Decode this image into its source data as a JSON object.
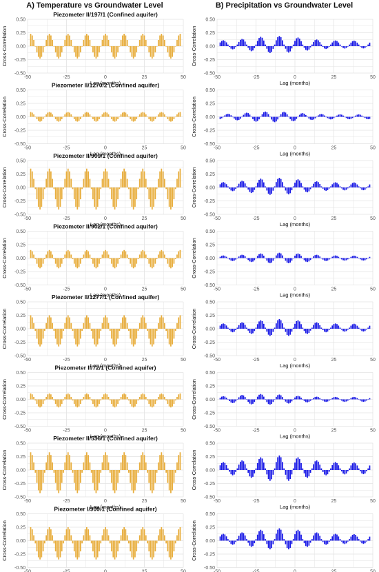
{
  "header": {
    "left_title": "A) Temperature vs Groundwater Level",
    "right_title": "B) Precipitation vs Groundwater Level"
  },
  "colors": {
    "temperature": "#E8AE3E",
    "precipitation": "#1A1AE6",
    "grid": "#E3E3E3",
    "zero_line": "#C8C8C8"
  },
  "panel_text": {
    "ylabel": "Cross-Correlation",
    "xlabel": "Lag (months)",
    "yticks": [
      "-0.50",
      "-0.25",
      "0.00",
      "0.25",
      "0.50"
    ],
    "xticks": [
      "-50",
      "-25",
      "0",
      "25",
      "50"
    ]
  },
  "chart_data": [
    {
      "type": "bar",
      "panel": "A1",
      "title": "Piezometer II/197/1 (Confined aquifer)",
      "xlabel": "Lag (months)",
      "ylabel": "Cross-Correlation",
      "xlim": [
        -50,
        50
      ],
      "ylim": [
        -0.5,
        0.5
      ],
      "lag_range": [
        -48,
        48
      ],
      "model": {
        "amp": 0.23,
        "offset": 0.0,
        "phase": 0
      }
    },
    {
      "type": "bar",
      "panel": "B1",
      "title": "",
      "xlabel": "Lag (months)",
      "ylabel": "Cross-Correlation",
      "xlim": [
        -50,
        50
      ],
      "ylim": [
        -0.5,
        0.5
      ],
      "lag_range": [
        -48,
        48
      ],
      "model": {
        "amp": 0.16,
        "offset": 0.03,
        "phase": 2,
        "envelope_center": -12
      }
    },
    {
      "type": "bar",
      "panel": "A2",
      "title": "Piezometer II/1270/2 (Confined aquifer)",
      "xlabel": "Lag (months)",
      "ylabel": "Cross-Correlation",
      "xlim": [
        -50,
        50
      ],
      "ylim": [
        -0.5,
        0.5
      ],
      "lag_range": [
        -48,
        48
      ],
      "model": {
        "amp": 0.09,
        "offset": 0.0,
        "phase": 0
      }
    },
    {
      "type": "bar",
      "panel": "B2",
      "title": "",
      "xlabel": "Lag (months)",
      "ylabel": "Cross-Correlation",
      "xlim": [
        -50,
        50
      ],
      "ylim": [
        -0.5,
        0.5
      ],
      "lag_range": [
        -48,
        48
      ],
      "model": {
        "amp": 0.1,
        "offset": 0.0,
        "phase": 5,
        "envelope_center": -15
      }
    },
    {
      "type": "bar",
      "panel": "A3",
      "title": "Piezometer II/909/1 (Confined aquifer)",
      "xlabel": "Lag (months)",
      "ylabel": "Cross-Correlation",
      "xlim": [
        -50,
        50
      ],
      "ylim": [
        -0.5,
        0.5
      ],
      "lag_range": [
        -48,
        48
      ],
      "model": {
        "amp": 0.38,
        "offset": -0.03,
        "phase": 0
      }
    },
    {
      "type": "bar",
      "panel": "B3",
      "title": "",
      "xlabel": "Lag (months)",
      "ylabel": "Cross-Correlation",
      "xlim": [
        -50,
        50
      ],
      "ylim": [
        -0.5,
        0.5
      ],
      "lag_range": [
        -48,
        48
      ],
      "model": {
        "amp": 0.16,
        "offset": 0.02,
        "phase": 2,
        "envelope_center": -12
      }
    },
    {
      "type": "bar",
      "panel": "A4",
      "title": "Piezometer II/902/1 (Confined aquifer)",
      "xlabel": "Lag (months)",
      "ylabel": "Cross-Correlation",
      "xlim": [
        -50,
        50
      ],
      "ylim": [
        -0.5,
        0.5
      ],
      "lag_range": [
        -48,
        48
      ],
      "model": {
        "amp": 0.17,
        "offset": -0.02,
        "phase": 0
      }
    },
    {
      "type": "bar",
      "panel": "B4",
      "title": "",
      "xlabel": "Lag (months)",
      "ylabel": "Cross-Correlation",
      "xlim": [
        -50,
        50
      ],
      "ylim": [
        -0.5,
        0.5
      ],
      "lag_range": [
        -48,
        48
      ],
      "model": {
        "amp": 0.1,
        "offset": 0.0,
        "phase": 2,
        "envelope_center": -10
      }
    },
    {
      "type": "bar",
      "panel": "A5",
      "title": "Piezometer II/1277/1 (Confined aquifer)",
      "xlabel": "Lag (months)",
      "ylabel": "Cross-Correlation",
      "xlim": [
        -50,
        50
      ],
      "ylim": [
        -0.5,
        0.5
      ],
      "lag_range": [
        -48,
        48
      ],
      "model": {
        "amp": 0.29,
        "offset": -0.04,
        "phase": 0
      }
    },
    {
      "type": "bar",
      "panel": "B5",
      "title": "",
      "xlabel": "Lag (months)",
      "ylabel": "Cross-Correlation",
      "xlim": [
        -50,
        50
      ],
      "ylim": [
        -0.5,
        0.5
      ],
      "lag_range": [
        -48,
        48
      ],
      "model": {
        "amp": 0.16,
        "offset": 0.02,
        "phase": 2,
        "envelope_center": -10
      }
    },
    {
      "type": "bar",
      "panel": "A6",
      "title": "Piezometer II/72/1 (Confined aquifer)",
      "xlabel": "Lag (months)",
      "ylabel": "Cross-Correlation",
      "xlim": [
        -50,
        50
      ],
      "ylim": [
        -0.5,
        0.5
      ],
      "lag_range": [
        -48,
        48
      ],
      "model": {
        "amp": 0.13,
        "offset": -0.02,
        "phase": 0
      }
    },
    {
      "type": "bar",
      "panel": "B6",
      "title": "",
      "xlabel": "Lag (months)",
      "ylabel": "Cross-Correlation",
      "xlim": [
        -50,
        50
      ],
      "ylim": [
        -0.5,
        0.5
      ],
      "lag_range": [
        -48,
        48
      ],
      "model": {
        "amp": 0.1,
        "offset": 0.0,
        "phase": 2,
        "envelope_center": -20
      }
    },
    {
      "type": "bar",
      "panel": "A7",
      "title": "Piezometer II/536/1 (Confined aquifer)",
      "xlabel": "Lag (months)",
      "ylabel": "Cross-Correlation",
      "xlim": [
        -50,
        50
      ],
      "ylim": [
        -0.5,
        0.5
      ],
      "lag_range": [
        -48,
        48
      ],
      "model": {
        "amp": 0.38,
        "offset": -0.05,
        "phase": 0
      }
    },
    {
      "type": "bar",
      "panel": "B7",
      "title": "",
      "xlabel": "Lag (months)",
      "ylabel": "Cross-Correlation",
      "xlim": [
        -50,
        50
      ],
      "ylim": [
        -0.5,
        0.5
      ],
      "lag_range": [
        -48,
        48
      ],
      "model": {
        "amp": 0.24,
        "offset": 0.03,
        "phase": 2,
        "envelope_center": -10
      }
    },
    {
      "type": "bar",
      "panel": "A8",
      "title": "Piezometer I/909/1 (Confined aquifer)",
      "xlabel": "Lag (months)",
      "ylabel": "Cross-Correlation",
      "xlim": [
        -50,
        50
      ],
      "ylim": [
        -0.5,
        0.5
      ],
      "lag_range": [
        -48,
        48
      ],
      "model": {
        "amp": 0.3,
        "offset": -0.05,
        "phase": 0
      }
    },
    {
      "type": "bar",
      "panel": "B8",
      "title": "",
      "xlabel": "Lag (months)",
      "ylabel": "Cross-Correlation",
      "xlim": [
        -50,
        50
      ],
      "ylim": [
        -0.5,
        0.5
      ],
      "lag_range": [
        -48,
        48
      ],
      "model": {
        "amp": 0.2,
        "offset": 0.03,
        "phase": 2,
        "envelope_center": -10
      }
    }
  ]
}
